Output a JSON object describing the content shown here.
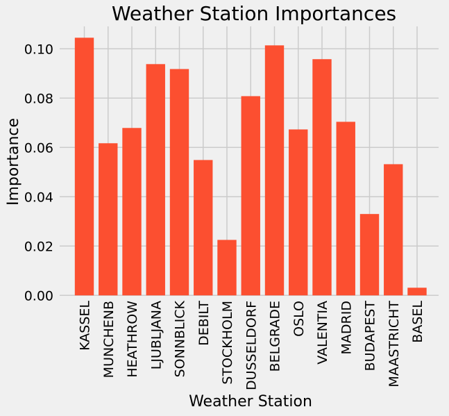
{
  "chart_data": {
    "type": "bar",
    "title": "Weather Station Importances",
    "xlabel": "Weather Station",
    "ylabel": "Importance",
    "ylim": [
      0,
      0.109
    ],
    "yticks": [
      "0.00",
      "0.02",
      "0.04",
      "0.06",
      "0.08",
      "0.10"
    ],
    "ytick_values": [
      0,
      0.02,
      0.04,
      0.06,
      0.08,
      0.1
    ],
    "grid": true,
    "bar_color": "#fc4f30",
    "background": "#f0f0f0",
    "grid_color": "#cbcbcb",
    "categories": [
      "KASSEL",
      "MUNCHENB",
      "HEATHROW",
      "LJUBLJANA",
      "SONNBLICK",
      "DEBILT",
      "STOCKHOLM",
      "DUSSELDORF",
      "BELGRADE",
      "OSLO",
      "VALENTIA",
      "MADRID",
      "BUDAPEST",
      "MAASTRICHT",
      "BASEL"
    ],
    "values": [
      0.1045,
      0.0617,
      0.0679,
      0.0938,
      0.0918,
      0.0549,
      0.0225,
      0.0808,
      0.1014,
      0.0673,
      0.0958,
      0.0704,
      0.033,
      0.0532,
      0.0031
    ]
  }
}
